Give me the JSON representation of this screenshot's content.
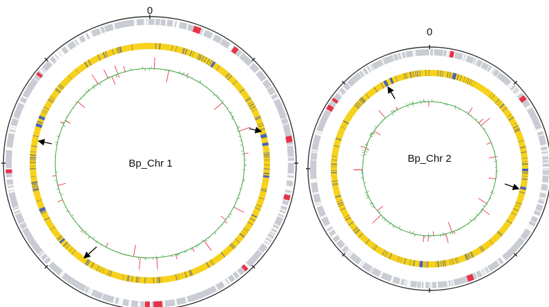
{
  "chromosomes": [
    {
      "name": "Bp_Chr 1",
      "start_label": "0"
    },
    {
      "name": "Bp_Chr 2",
      "start_label": "0"
    }
  ],
  "colors": {
    "outer_ring": "#c9cdd3",
    "outer_highlight": "#e8324a",
    "gene_ring": "#f7d21c",
    "gene_dark": "#7a7a6a",
    "gene_highlight": "#4a63b8",
    "plot_line": "#3aa33a",
    "plot_peak": "#e8324a",
    "axis": "#333333",
    "arrow": "#000000"
  }
}
